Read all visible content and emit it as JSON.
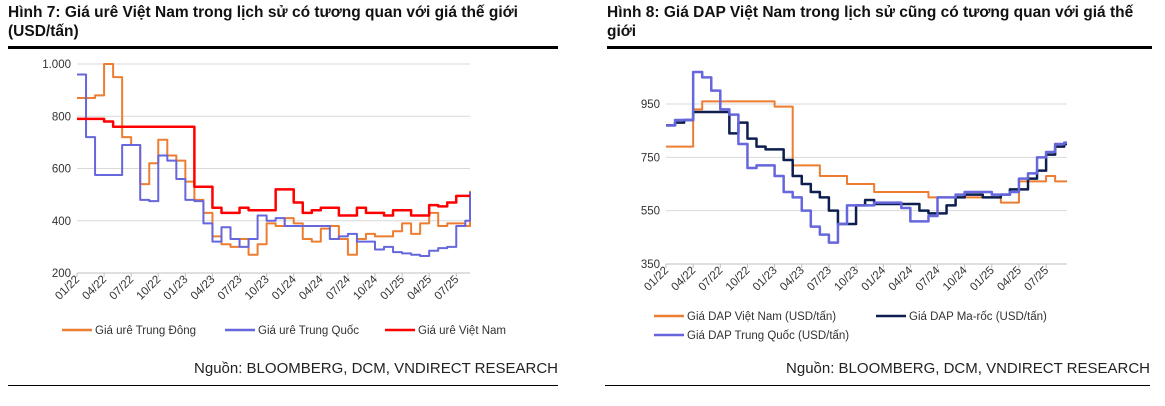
{
  "chart_data": [
    {
      "type": "line",
      "title": "Hình 7: Giá urê Việt Nam trong lịch sử có tương quan với giá thế giới (USD/tấn)",
      "source": "Nguồn: BLOOMBERG, DCM, VNDIRECT RESEARCH",
      "ylim": [
        200,
        1000
      ],
      "yticks": [
        200,
        400,
        600,
        800,
        1000
      ],
      "ytick_labels": [
        "200",
        "400",
        "600",
        "800",
        "1.000"
      ],
      "xtick_labels": [
        "01/22",
        "04/22",
        "07/22",
        "10/22",
        "01/23",
        "04/23",
        "07/23",
        "10/23",
        "01/24",
        "04/24",
        "07/24",
        "10/24",
        "01/25",
        "04/25",
        "07/25"
      ],
      "x_start": "01/22",
      "grid": true,
      "legend": "bottom",
      "series": [
        {
          "name": "Giá urê Trung Đông",
          "color": "#ED7D31",
          "values": [
            870,
            870,
            880,
            1000,
            950,
            720,
            690,
            540,
            620,
            710,
            650,
            630,
            550,
            480,
            430,
            340,
            310,
            300,
            330,
            270,
            310,
            390,
            380,
            410,
            390,
            330,
            320,
            370,
            380,
            330,
            270,
            330,
            350,
            340,
            340,
            360,
            390,
            350,
            390,
            430,
            380,
            390,
            390,
            380,
            500,
            515
          ]
        },
        {
          "name": "Giá urê Trung Quốc",
          "color": "#6666DD",
          "values": [
            960,
            720,
            575,
            575,
            575,
            690,
            690,
            480,
            475,
            650,
            630,
            560,
            480,
            475,
            390,
            320,
            375,
            330,
            300,
            330,
            420,
            400,
            410,
            380,
            380,
            380,
            380,
            380,
            330,
            340,
            350,
            320,
            320,
            290,
            300,
            280,
            275,
            270,
            265,
            285,
            295,
            300,
            380,
            400,
            460,
            510
          ]
        },
        {
          "name": "Giá urê Việt Nam",
          "color": "#FF0000",
          "values": [
            790,
            790,
            790,
            780,
            760,
            760,
            760,
            760,
            760,
            760,
            760,
            760,
            760,
            530,
            530,
            450,
            430,
            430,
            450,
            440,
            440,
            440,
            520,
            520,
            470,
            430,
            440,
            450,
            450,
            420,
            420,
            450,
            430,
            430,
            420,
            440,
            440,
            420,
            420,
            460,
            455,
            470,
            495,
            495,
            495,
            495
          ]
        }
      ]
    },
    {
      "type": "line",
      "title": "Hình 8: Giá DAP Việt Nam trong lịch sử cũng có tương quan với giá thế giới",
      "source": "Nguồn: BLOOMBERG, DCM, VNDIRECT RESEARCH",
      "ylim": [
        350,
        1100
      ],
      "yticks": [
        350,
        550,
        750,
        950
      ],
      "ytick_labels": [
        "350",
        "550",
        "750",
        "950"
      ],
      "xtick_labels": [
        "01/22",
        "04/22",
        "07/22",
        "10/22",
        "01/23",
        "04/23",
        "07/23",
        "10/23",
        "01/24",
        "04/24",
        "07/24",
        "10/24",
        "01/25",
        "04/25",
        "07/25"
      ],
      "x_start": "01/22",
      "grid": true,
      "legend": "bottom",
      "series": [
        {
          "name": "Giá DAP Việt Nam (USD/tấn)",
          "color": "#ED7D31",
          "values": [
            790,
            790,
            790,
            930,
            960,
            960,
            960,
            960,
            960,
            960,
            960,
            960,
            940,
            940,
            720,
            720,
            720,
            680,
            680,
            680,
            650,
            650,
            650,
            620,
            620,
            620,
            620,
            620,
            620,
            600,
            600,
            600,
            600,
            600,
            600,
            600,
            600,
            580,
            580,
            660,
            660,
            660,
            680,
            660,
            660,
            660
          ]
        },
        {
          "name": "Giá DAP Ma-rốc (USD/tấn)",
          "color": "#0D1E4F",
          "values": [
            870,
            880,
            890,
            920,
            920,
            920,
            920,
            840,
            880,
            820,
            790,
            780,
            780,
            740,
            680,
            650,
            620,
            600,
            550,
            500,
            500,
            570,
            590,
            575,
            575,
            575,
            575,
            575,
            550,
            540,
            540,
            570,
            600,
            610,
            610,
            600,
            600,
            610,
            630,
            630,
            670,
            700,
            760,
            790,
            800,
            800
          ]
        },
        {
          "name": "Giá DAP Trung Quốc (USD/tấn)",
          "color": "#6666DD",
          "values": [
            870,
            890,
            890,
            1070,
            1050,
            1000,
            930,
            910,
            800,
            710,
            720,
            720,
            680,
            620,
            600,
            550,
            490,
            460,
            430,
            500,
            570,
            570,
            570,
            580,
            580,
            580,
            560,
            510,
            510,
            530,
            600,
            600,
            610,
            620,
            620,
            620,
            610,
            610,
            620,
            670,
            690,
            750,
            770,
            800,
            805,
            805
          ]
        }
      ]
    }
  ]
}
